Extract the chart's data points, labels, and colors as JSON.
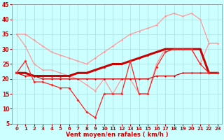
{
  "x": [
    0,
    1,
    2,
    3,
    4,
    5,
    6,
    7,
    8,
    9,
    10,
    11,
    12,
    13,
    14,
    15,
    16,
    17,
    18,
    19,
    20,
    21,
    22,
    23
  ],
  "pink_top": [
    35,
    35,
    33,
    31,
    29,
    28,
    27,
    26,
    25,
    27,
    29,
    31,
    33,
    35,
    36,
    37,
    38,
    41,
    42,
    41,
    42,
    40,
    32,
    32
  ],
  "pink_bot": [
    35,
    31,
    25,
    23,
    23,
    22,
    21,
    20,
    18,
    16,
    20,
    15,
    20,
    20,
    15,
    15,
    25,
    30,
    30,
    30,
    30,
    25,
    32,
    32
  ],
  "red_thick": [
    22,
    22,
    21,
    21,
    21,
    21,
    21,
    22,
    22,
    23,
    24,
    25,
    25,
    26,
    27,
    28,
    29,
    30,
    30,
    30,
    30,
    30,
    22,
    22
  ],
  "red_thin": [
    22,
    21,
    21,
    20,
    20,
    20,
    20,
    20,
    20,
    20,
    20,
    20,
    20,
    20,
    20,
    20,
    21,
    21,
    21,
    22,
    22,
    22,
    22,
    22
  ],
  "red_marker": [
    22,
    26,
    19,
    19,
    18,
    17,
    17,
    13,
    9,
    7,
    15,
    15,
    15,
    26,
    15,
    15,
    24,
    29,
    30,
    30,
    30,
    25,
    22,
    22
  ],
  "ylim": [
    5,
    45
  ],
  "yticks": [
    5,
    10,
    15,
    20,
    25,
    30,
    35,
    40,
    45
  ],
  "xlim": [
    -0.5,
    23.5
  ],
  "xticks": [
    0,
    1,
    2,
    3,
    4,
    5,
    6,
    7,
    8,
    9,
    10,
    11,
    12,
    13,
    14,
    15,
    16,
    17,
    18,
    19,
    20,
    21,
    22,
    23
  ],
  "xlabel": "Vent moyen/en rafales ( km/h )",
  "bg_color": "#CCFFFF",
  "grid_color": "#AADDDD",
  "pink_color": "#FF9999",
  "dark_red": "#CC0000",
  "bright_red": "#FF2222",
  "tick_color": "#CC0000"
}
